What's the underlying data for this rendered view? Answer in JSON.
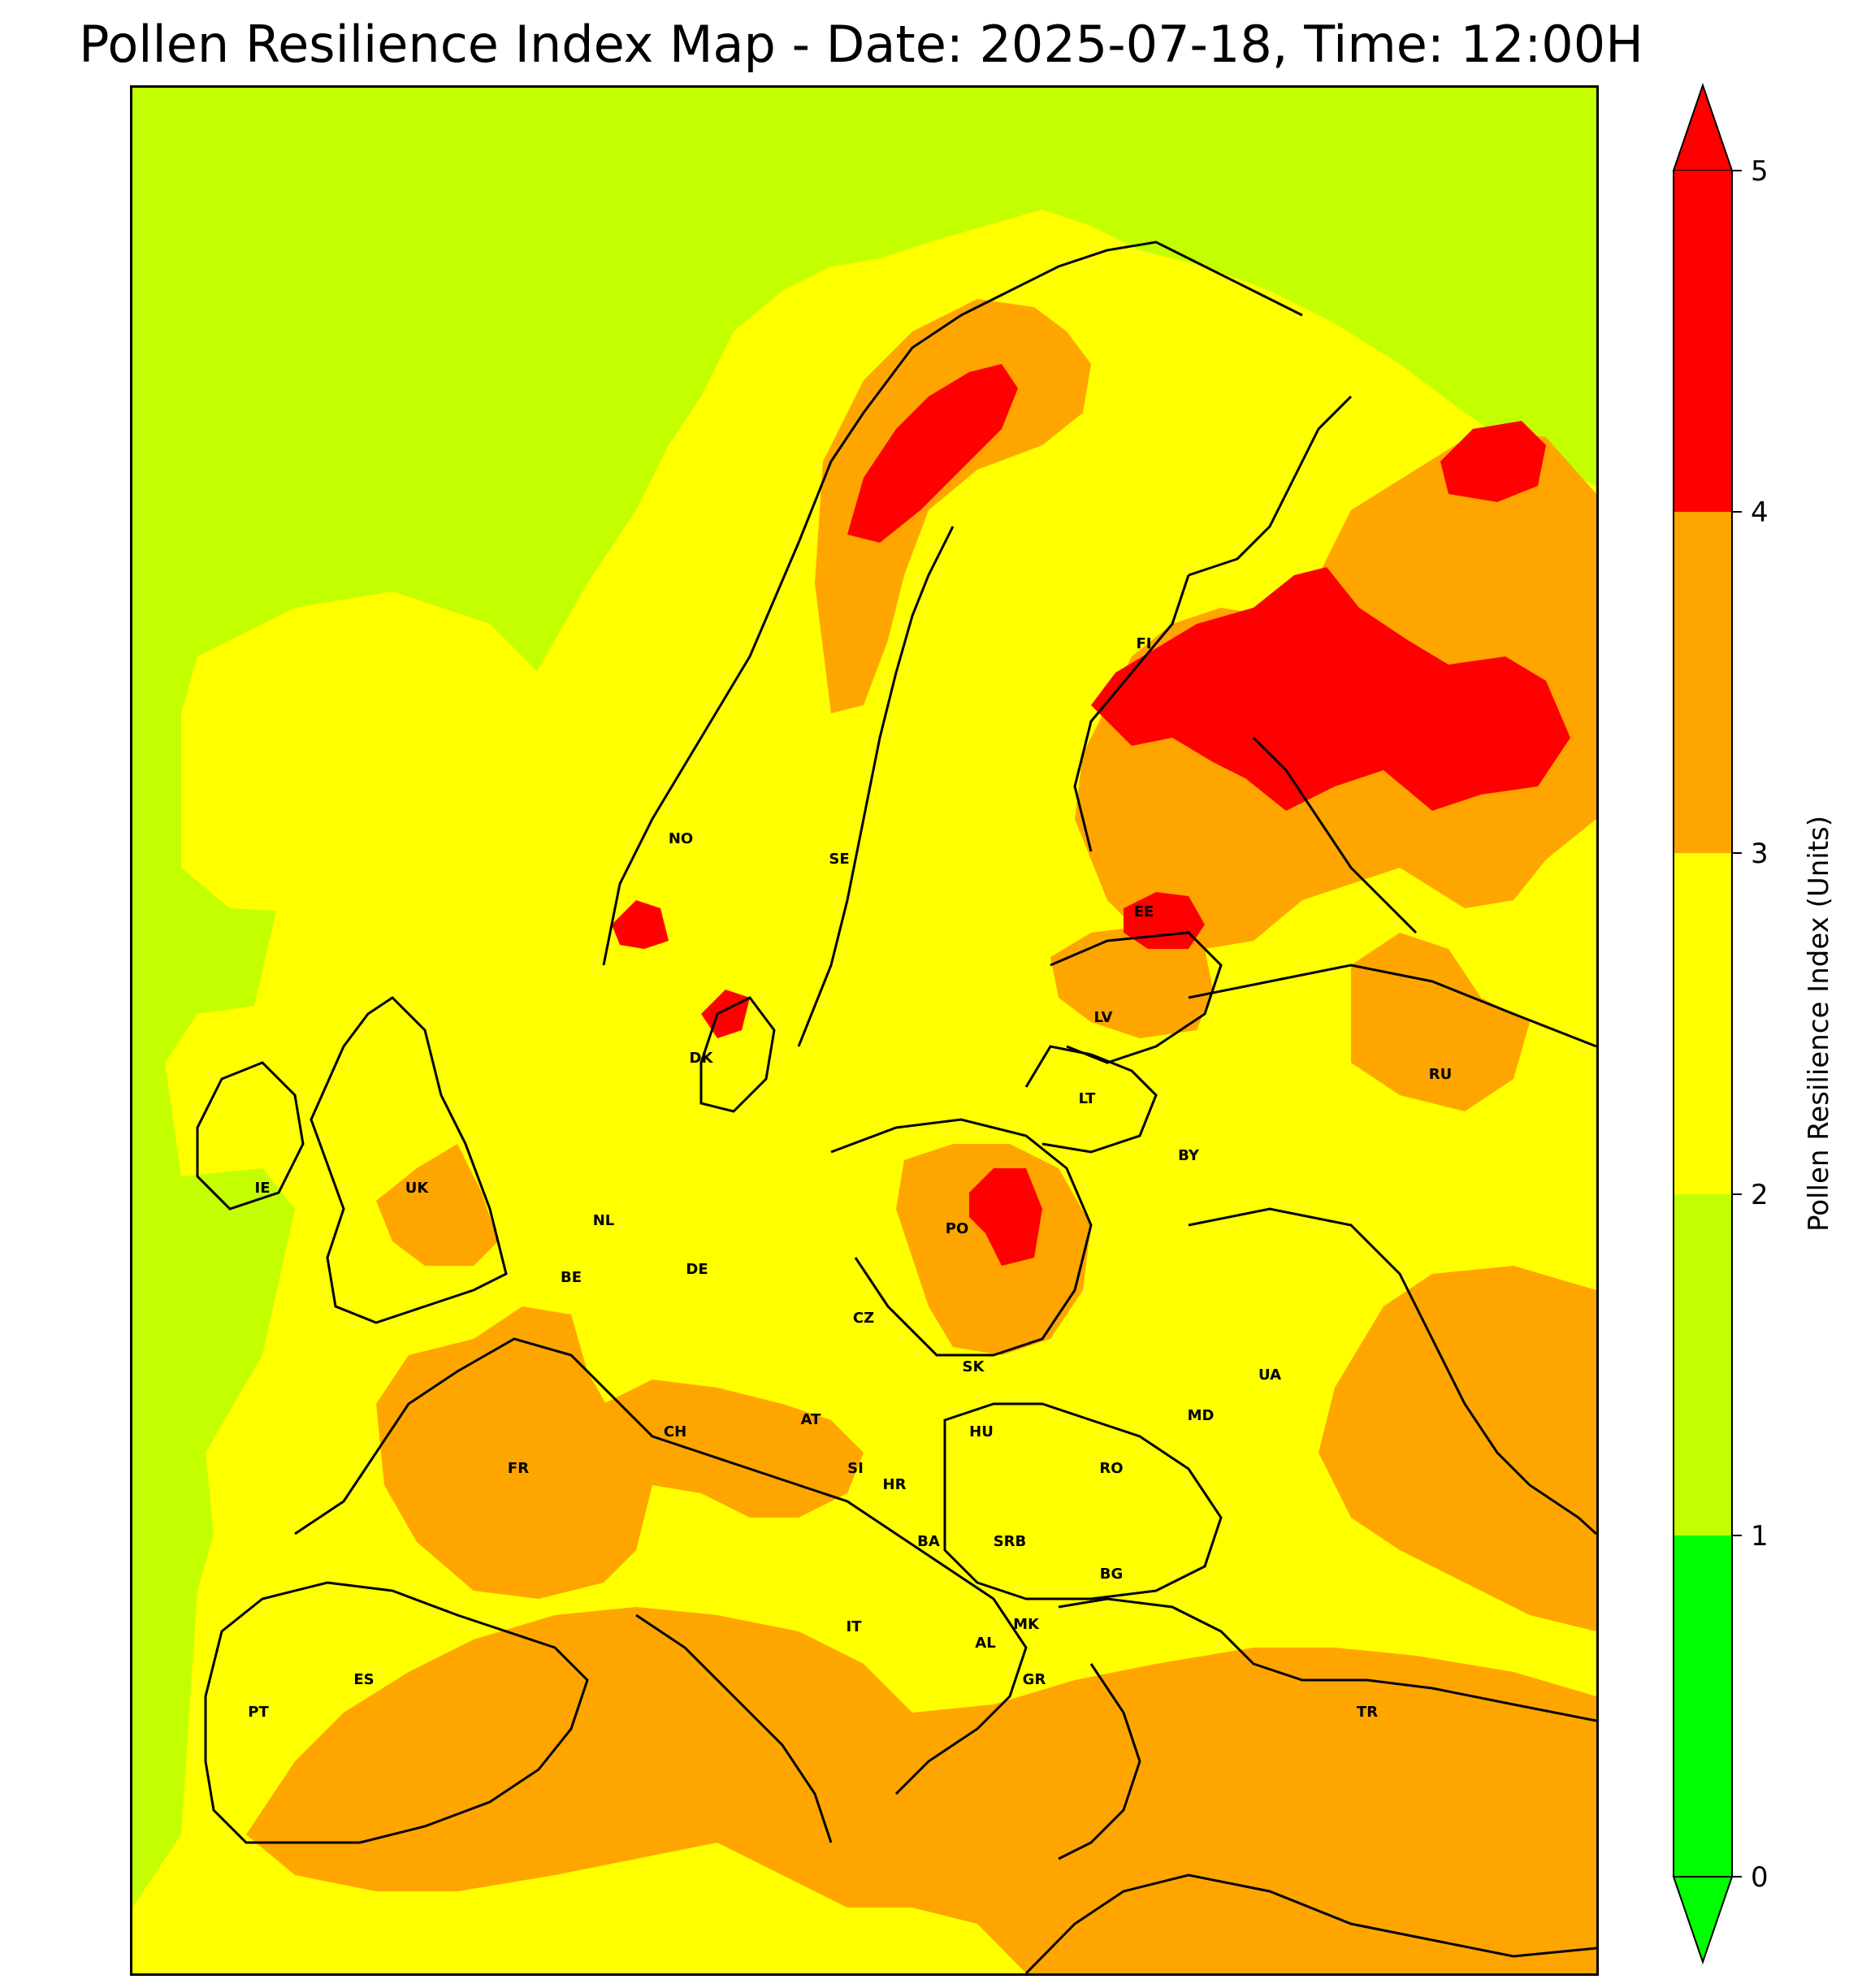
{
  "title": "Pollen Resilience Index Map - Date: 2025-07-18, Time: 12:00H",
  "colorbar": {
    "label": "Pollen Resilience Index (Units)",
    "ticks": [
      "0",
      "1",
      "2",
      "3",
      "4",
      "5"
    ],
    "bins": [
      {
        "range": [
          0,
          1
        ],
        "color": "#00ff00"
      },
      {
        "range": [
          1,
          2
        ],
        "color": "#c3ff00"
      },
      {
        "range": [
          2,
          3
        ],
        "color": "#ffff00"
      },
      {
        "range": [
          3,
          4
        ],
        "color": "#ffa500"
      },
      {
        "range": [
          4,
          5
        ],
        "color": "#ff0000"
      }
    ],
    "extend": "both"
  },
  "countries": [
    {
      "code": "NO"
    },
    {
      "code": "SE"
    },
    {
      "code": "FI"
    },
    {
      "code": "EE"
    },
    {
      "code": "LV"
    },
    {
      "code": "LT"
    },
    {
      "code": "RU"
    },
    {
      "code": "BY"
    },
    {
      "code": "DK"
    },
    {
      "code": "IE"
    },
    {
      "code": "UK"
    },
    {
      "code": "NL"
    },
    {
      "code": "BE"
    },
    {
      "code": "DE"
    },
    {
      "code": "PO"
    },
    {
      "code": "CZ"
    },
    {
      "code": "SK"
    },
    {
      "code": "UA"
    },
    {
      "code": "MD"
    },
    {
      "code": "AT"
    },
    {
      "code": "CH"
    },
    {
      "code": "HU"
    },
    {
      "code": "FR"
    },
    {
      "code": "SI"
    },
    {
      "code": "HR"
    },
    {
      "code": "RO"
    },
    {
      "code": "BA"
    },
    {
      "code": "SRB"
    },
    {
      "code": "BG"
    },
    {
      "code": "IT"
    },
    {
      "code": "MK"
    },
    {
      "code": "AL"
    },
    {
      "code": "ES"
    },
    {
      "code": "GR"
    },
    {
      "code": "PT"
    },
    {
      "code": "TR"
    }
  ]
}
